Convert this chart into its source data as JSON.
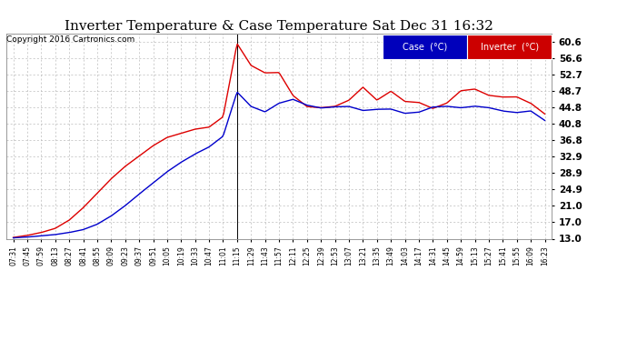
{
  "title": "Inverter Temperature & Case Temperature Sat Dec 31 16:32",
  "copyright": "Copyright 2016 Cartronics.com",
  "legend_case": "Case  (°C)",
  "legend_inverter": "Inverter  (°C)",
  "case_color": "#0000cc",
  "inverter_color": "#dd0000",
  "legend_case_bg": "#0000cc",
  "legend_inverter_bg": "#cc0000",
  "bg_color": "#ffffff",
  "plot_bg_color": "#ffffff",
  "grid_color": "#aaaaaa",
  "yticks": [
    13.0,
    17.0,
    21.0,
    24.9,
    28.9,
    32.9,
    36.8,
    40.8,
    44.8,
    48.7,
    52.7,
    56.6,
    60.6
  ],
  "ylim": [
    13.0,
    62.5
  ],
  "xtick_labels": [
    "07:31",
    "07:45",
    "07:59",
    "08:13",
    "08:27",
    "08:41",
    "08:55",
    "09:09",
    "09:23",
    "09:37",
    "09:51",
    "10:05",
    "10:19",
    "10:33",
    "10:47",
    "11:01",
    "11:15",
    "11:29",
    "11:43",
    "11:57",
    "12:11",
    "12:25",
    "12:39",
    "12:53",
    "13:07",
    "13:21",
    "13:35",
    "13:49",
    "14:03",
    "14:17",
    "14:31",
    "14:45",
    "14:59",
    "15:13",
    "15:27",
    "15:41",
    "15:55",
    "16:09",
    "16:23"
  ],
  "spike_index": 16,
  "case_vals": [
    13.2,
    13.4,
    13.7,
    14.0,
    14.5,
    15.2,
    16.5,
    18.5,
    21.0,
    23.8,
    26.5,
    29.2,
    31.5,
    33.5,
    35.2,
    37.8,
    48.5,
    44.8,
    43.5,
    46.0,
    46.5,
    46.2,
    44.8,
    44.0,
    45.2,
    44.5,
    44.8,
    44.2,
    44.0,
    43.8,
    44.5,
    44.8,
    45.0,
    45.2,
    44.8,
    44.5,
    44.0,
    42.8,
    41.2
  ],
  "inv_vals": [
    13.3,
    13.8,
    14.5,
    15.5,
    17.5,
    20.5,
    24.0,
    27.5,
    30.5,
    33.0,
    35.5,
    37.5,
    38.5,
    39.5,
    40.0,
    42.5,
    60.2,
    55.0,
    51.5,
    52.5,
    46.5,
    45.5,
    47.2,
    47.5,
    46.0,
    47.8,
    46.5,
    48.5,
    46.8,
    46.5,
    46.2,
    47.5,
    47.0,
    47.8,
    47.2,
    48.5,
    47.5,
    46.2,
    44.8
  ]
}
